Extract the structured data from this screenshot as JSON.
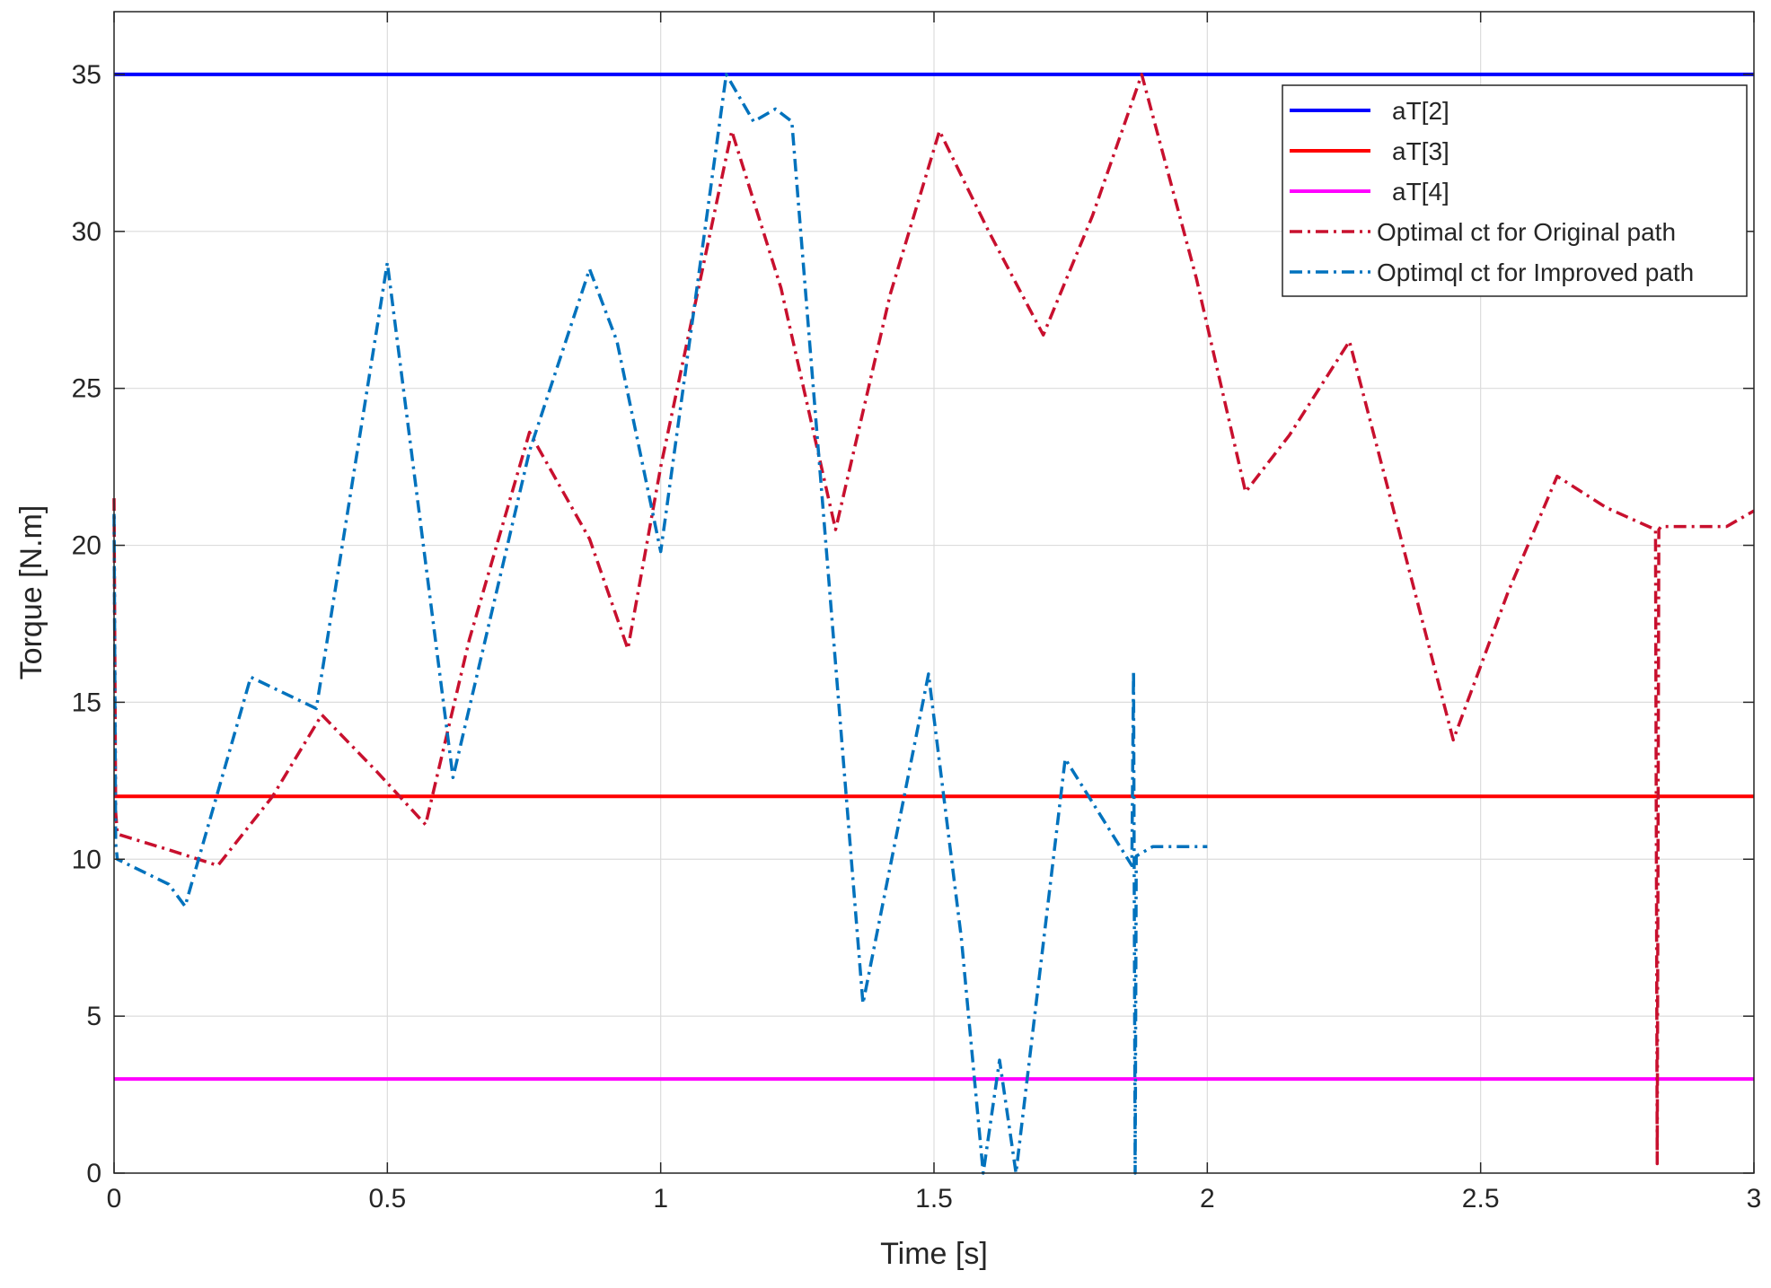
{
  "chart_data": {
    "type": "line",
    "title": "",
    "xlabel": "Time [s]",
    "ylabel": "Torque [N.m]",
    "xlim": [
      0,
      3
    ],
    "ylim": [
      0,
      37
    ],
    "xticks": [
      0,
      0.5,
      1,
      1.5,
      2,
      2.5,
      3
    ],
    "xtick_labels": [
      "0",
      "0.5",
      "1",
      "1.5",
      "2",
      "2.5",
      "3"
    ],
    "yticks": [
      0,
      5,
      10,
      15,
      20,
      25,
      30,
      35
    ],
    "ytick_labels": [
      "0",
      "5",
      "10",
      "15",
      "20",
      "25",
      "30",
      "35"
    ],
    "grid": true,
    "legend_position": "top-right",
    "series": [
      {
        "name": "aT[2]",
        "style": "solid",
        "color": "#0000ff",
        "x": [
          0,
          3
        ],
        "y": [
          35,
          35
        ]
      },
      {
        "name": "aT[3]",
        "style": "solid",
        "color": "#ff0000",
        "x": [
          0,
          3
        ],
        "y": [
          12,
          12
        ]
      },
      {
        "name": "aT[4]",
        "style": "solid",
        "color": "#ff00ff",
        "x": [
          0,
          3
        ],
        "y": [
          3,
          3
        ]
      },
      {
        "name": "Optimal ct for Original path",
        "style": "dashdot",
        "color": "#c8102e",
        "x": [
          0,
          0.003,
          0.006,
          0.1,
          0.19,
          0.29,
          0.38,
          0.48,
          0.57,
          0.65,
          0.76,
          0.87,
          0.94,
          1.0,
          1.13,
          1.22,
          1.32,
          1.42,
          1.51,
          1.6,
          1.7,
          1.79,
          1.88,
          1.98,
          2.07,
          2.15,
          2.26,
          2.35,
          2.45,
          2.55,
          2.64,
          2.73,
          2.82,
          2.823,
          2.826,
          2.83,
          2.9,
          2.95,
          3.0
        ],
        "y": [
          21.5,
          11.5,
          10.8,
          10.3,
          9.8,
          12.0,
          14.6,
          12.8,
          11.1,
          17.0,
          23.6,
          20.2,
          16.7,
          22.5,
          33.2,
          28.2,
          20.5,
          28.0,
          33.2,
          30.0,
          26.7,
          30.5,
          35.0,
          28.5,
          21.7,
          23.5,
          26.5,
          20.5,
          13.8,
          18.5,
          22.2,
          21.2,
          20.5,
          0.3,
          20.5,
          20.6,
          20.6,
          20.6,
          21.1
        ]
      },
      {
        "name": "Optimql ct for Improved path",
        "style": "dashdot",
        "color": "#0072bd",
        "x": [
          0,
          0.003,
          0.006,
          0.1,
          0.13,
          0.25,
          0.37,
          0.5,
          0.62,
          0.76,
          0.87,
          0.92,
          1.0,
          1.12,
          1.17,
          1.21,
          1.24,
          1.37,
          1.49,
          1.55,
          1.59,
          1.62,
          1.65,
          1.74,
          1.862,
          1.865,
          1.868,
          1.87,
          1.9,
          2.0
        ],
        "y": [
          21.0,
          10.5,
          10.0,
          9.2,
          8.5,
          15.8,
          14.8,
          29.0,
          12.6,
          23.0,
          28.8,
          26.5,
          19.8,
          35.0,
          33.5,
          33.9,
          33.5,
          5.4,
          15.9,
          7.5,
          0.0,
          3.6,
          0.0,
          13.2,
          9.8,
          16.0,
          0.0,
          10.1,
          10.4,
          10.4
        ]
      }
    ]
  }
}
